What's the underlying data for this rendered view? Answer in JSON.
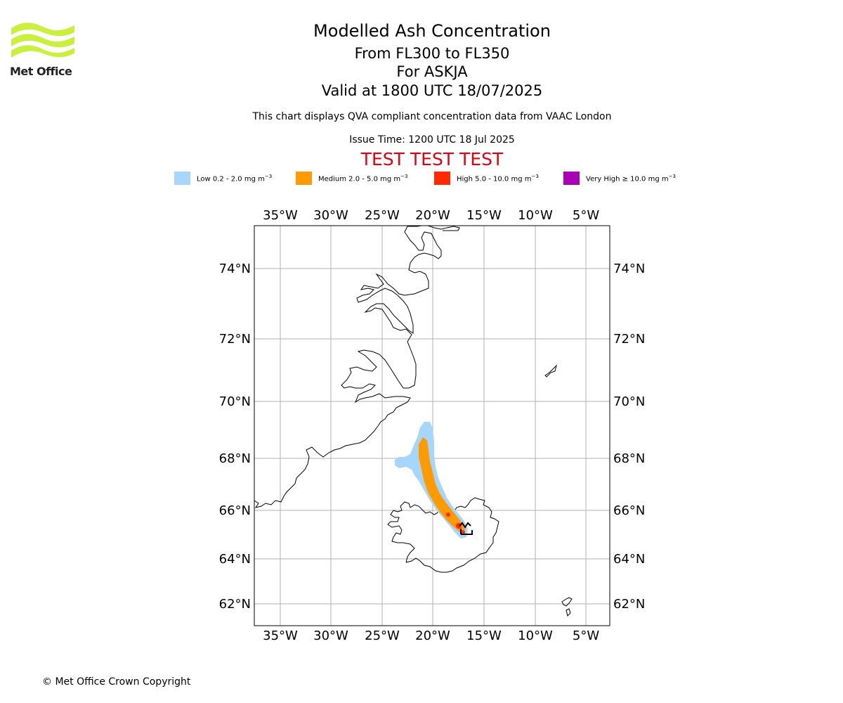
{
  "logo": {
    "text": "Met Office",
    "color": "#c8f03c"
  },
  "header": {
    "title": "Modelled Ash Concentration",
    "levels": "From FL300 to FL350",
    "volcano": "For ASKJA",
    "valid": "Valid at 1800 UTC 18/07/2025",
    "note": "This chart displays QVA compliant concentration data from VAAC London",
    "issue": "Issue Time: 1200 UTC 18 Jul 2025",
    "test_banner": "TEST TEST TEST"
  },
  "legend": [
    {
      "label": "Low 0.2 - 2.0 mg m",
      "color": "#a6d6fc"
    },
    {
      "label": "Medium 2.0 - 5.0 mg m",
      "color": "#ff9a00"
    },
    {
      "label": "High 5.0 - 10.0 mg m",
      "color": "#ff2a00"
    },
    {
      "label": "Very High ≥ 10.0 mg m",
      "color": "#a800b4"
    }
  ],
  "legend_unit_exp": "−3",
  "map": {
    "lon_labels": [
      "35°W",
      "30°W",
      "25°W",
      "20°W",
      "15°W",
      "10°W",
      "5°W"
    ],
    "lat_labels": [
      "74°N",
      "72°N",
      "70°N",
      "68°N",
      "66°N",
      "64°N",
      "62°N"
    ],
    "grid_color": "#b0b0b0"
  },
  "footer": {
    "copyright": "© Met Office Crown Copyright"
  }
}
